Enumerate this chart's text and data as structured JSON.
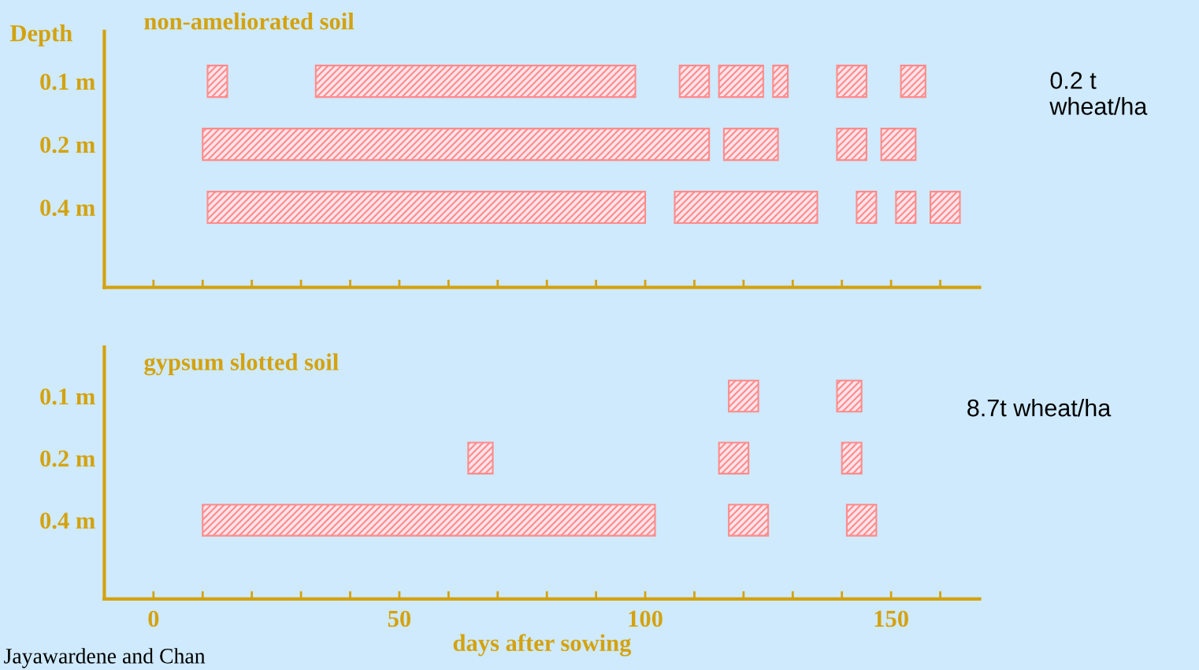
{
  "chart_data": [
    {
      "type": "bar",
      "orientation": "horizontal",
      "title": "non-ameliorated soil",
      "ylabel": "Depth",
      "categories": [
        "0.1 m",
        "0.2 m",
        "0.4 m"
      ],
      "series": [
        {
          "color": "#ff8c8c",
          "base": [
            11,
            10,
            11
          ],
          "values": [
            4,
            103,
            89
          ]
        },
        {
          "color": "#ff8c8c",
          "base": [
            33,
            116,
            106
          ],
          "values": [
            65,
            11,
            29
          ]
        },
        {
          "color": "#ff8c8c",
          "base": [
            107,
            139,
            143
          ],
          "values": [
            6,
            6,
            4
          ]
        },
        {
          "color": "#ff8c8c",
          "base": [
            115,
            148,
            151
          ],
          "values": [
            9,
            7,
            4
          ]
        },
        {
          "color": "#ff8c8c",
          "base": [
            126,
            null,
            158
          ],
          "values": [
            3,
            null,
            6
          ]
        },
        {
          "color": "#ff8c8c",
          "base": [
            139,
            null,
            null
          ],
          "values": [
            6,
            null,
            null
          ]
        },
        {
          "color": "#ff8c8c",
          "base": [
            152,
            null,
            null
          ],
          "values": [
            5,
            null,
            null
          ]
        }
      ],
      "xlim": [
        -10,
        168
      ],
      "xticks": [
        0,
        {
          "value": 10,
          "label": null
        },
        {
          "value": 20,
          "label": null
        },
        {
          "value": 30,
          "label": null
        },
        {
          "value": 40,
          "label": null
        },
        50,
        {
          "value": 60,
          "label": null
        },
        {
          "value": 70,
          "label": null
        },
        {
          "value": 80,
          "label": null
        },
        {
          "value": 90,
          "label": null
        },
        100,
        {
          "value": 110,
          "label": null
        },
        {
          "value": 120,
          "label": null
        },
        {
          "value": 130,
          "label": null
        },
        {
          "value": 140,
          "label": null
        },
        150,
        {
          "value": 160,
          "label": null
        }
      ],
      "tick_labels": "y",
      "grid": false,
      "legend": false,
      "annotations": [
        "0.2 t\nwheat/ha"
      ]
    },
    {
      "type": "bar",
      "orientation": "horizontal",
      "title": "gypsum slotted soil",
      "xlabel": "days after sowing",
      "categories": [
        "0.1 m",
        "0.2 m",
        "0.4 m"
      ],
      "series": [
        {
          "color": "#ff8c8c",
          "base": [
            null,
            64,
            10
          ],
          "values": [
            null,
            5,
            92
          ]
        },
        {
          "color": "#ff8c8c",
          "base": [
            117,
            115,
            117
          ],
          "values": [
            6,
            6,
            8
          ]
        },
        {
          "color": "#ff8c8c",
          "base": [
            139,
            140,
            141
          ],
          "values": [
            5,
            4,
            6
          ]
        }
      ],
      "xlim": [
        -10,
        168
      ],
      "xticks": [
        0,
        {
          "value": 10,
          "label": null
        },
        {
          "value": 20,
          "label": null
        },
        {
          "value": 30,
          "label": null
        },
        {
          "value": 40,
          "label": null
        },
        50,
        {
          "value": 60,
          "label": null
        },
        {
          "value": 70,
          "label": null
        },
        {
          "value": 80,
          "label": null
        },
        {
          "value": 90,
          "label": null
        },
        100,
        {
          "value": 110,
          "label": null
        },
        {
          "value": 120,
          "label": null
        },
        {
          "value": 130,
          "label": null
        },
        {
          "value": 140,
          "label": null
        },
        150,
        {
          "value": 160,
          "label": null
        }
      ],
      "grid": false,
      "legend": false,
      "annotations": [
        "8.7t wheat/ha",
        "Jayawardene and Chan"
      ]
    }
  ]
}
